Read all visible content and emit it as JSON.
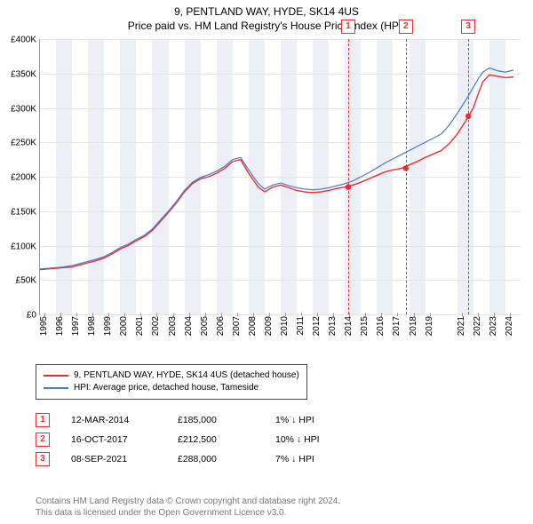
{
  "title_line1": "9, PENTLAND WAY, HYDE, SK14 4US",
  "title_line2": "Price paid vs. HM Land Registry's House Price Index (HPI)",
  "chart": {
    "type": "line",
    "x_range": [
      1995,
      2025
    ],
    "y_range": [
      0,
      400000
    ],
    "y_ticks": [
      0,
      50000,
      100000,
      150000,
      200000,
      250000,
      300000,
      350000,
      400000
    ],
    "y_tick_labels": [
      "£0",
      "£50K",
      "£100K",
      "£150K",
      "£200K",
      "£250K",
      "£300K",
      "£350K",
      "£400K"
    ],
    "x_ticks": [
      1995,
      1996,
      1997,
      1998,
      1999,
      2000,
      2001,
      2002,
      2003,
      2004,
      2005,
      2006,
      2007,
      2008,
      2009,
      2010,
      2011,
      2012,
      2013,
      2014,
      2015,
      2016,
      2017,
      2018,
      2019,
      2021,
      2022,
      2023,
      2024
    ],
    "alt_band_years": [
      [
        1996,
        1997
      ],
      [
        1998,
        1999
      ],
      [
        2000,
        2001
      ],
      [
        2002,
        2003
      ],
      [
        2004,
        2005
      ],
      [
        2006,
        2007
      ],
      [
        2008,
        2009
      ],
      [
        2010,
        2011
      ],
      [
        2012,
        2013
      ],
      [
        2014,
        2015
      ],
      [
        2016,
        2017
      ],
      [
        2018,
        2019
      ],
      [
        2021,
        2022
      ],
      [
        2023,
        2024
      ]
    ],
    "grid_color": "#e4e4e4",
    "band_color": "#eceff5",
    "series": [
      {
        "name": "9, PENTLAND WAY, HYDE, SK14 4US (detached house)",
        "color": "#ef2b2d",
        "width": 1.4,
        "points": [
          [
            1995,
            65000
          ],
          [
            1995.5,
            66000
          ],
          [
            1996,
            67000
          ],
          [
            1996.5,
            68000
          ],
          [
            1997,
            69000
          ],
          [
            1997.5,
            72000
          ],
          [
            1998,
            75000
          ],
          [
            1998.5,
            78000
          ],
          [
            1999,
            82000
          ],
          [
            1999.5,
            88000
          ],
          [
            2000,
            95000
          ],
          [
            2000.5,
            100000
          ],
          [
            2001,
            107000
          ],
          [
            2001.5,
            113000
          ],
          [
            2002,
            122000
          ],
          [
            2002.5,
            135000
          ],
          [
            2003,
            148000
          ],
          [
            2003.5,
            162000
          ],
          [
            2004,
            178000
          ],
          [
            2004.5,
            190000
          ],
          [
            2005,
            197000
          ],
          [
            2005.5,
            200000
          ],
          [
            2006,
            205000
          ],
          [
            2006.5,
            212000
          ],
          [
            2007,
            222000
          ],
          [
            2007.5,
            225000
          ],
          [
            2008,
            205000
          ],
          [
            2008.3,
            195000
          ],
          [
            2008.6,
            185000
          ],
          [
            2009,
            178000
          ],
          [
            2009.5,
            185000
          ],
          [
            2010,
            188000
          ],
          [
            2010.5,
            184000
          ],
          [
            2011,
            180000
          ],
          [
            2011.5,
            178000
          ],
          [
            2012,
            177000
          ],
          [
            2012.5,
            178000
          ],
          [
            2013,
            180000
          ],
          [
            2013.5,
            183000
          ],
          [
            2014,
            185000
          ],
          [
            2014.5,
            188000
          ],
          [
            2015,
            192000
          ],
          [
            2015.5,
            197000
          ],
          [
            2016,
            202000
          ],
          [
            2016.5,
            207000
          ],
          [
            2017,
            210000
          ],
          [
            2017.5,
            212000
          ],
          [
            2018,
            217000
          ],
          [
            2018.5,
            222000
          ],
          [
            2019,
            228000
          ],
          [
            2019.5,
            233000
          ],
          [
            2020,
            238000
          ],
          [
            2020.5,
            248000
          ],
          [
            2021,
            262000
          ],
          [
            2021.5,
            280000
          ],
          [
            2022,
            300000
          ],
          [
            2022.3,
            320000
          ],
          [
            2022.6,
            338000
          ],
          [
            2023,
            348000
          ],
          [
            2023.5,
            346000
          ],
          [
            2024,
            344000
          ],
          [
            2024.5,
            345000
          ]
        ]
      },
      {
        "name": "HPI: Average price, detached house, Tameside",
        "color": "#4a78c4",
        "width": 1.2,
        "points": [
          [
            1995,
            66000
          ],
          [
            1995.5,
            67000
          ],
          [
            1996,
            68000
          ],
          [
            1996.5,
            69000
          ],
          [
            1997,
            71000
          ],
          [
            1997.5,
            74000
          ],
          [
            1998,
            77000
          ],
          [
            1998.5,
            80000
          ],
          [
            1999,
            84000
          ],
          [
            1999.5,
            90000
          ],
          [
            2000,
            97000
          ],
          [
            2000.5,
            102000
          ],
          [
            2001,
            109000
          ],
          [
            2001.5,
            115000
          ],
          [
            2002,
            124000
          ],
          [
            2002.5,
            137000
          ],
          [
            2003,
            150000
          ],
          [
            2003.5,
            164000
          ],
          [
            2004,
            180000
          ],
          [
            2004.5,
            192000
          ],
          [
            2005,
            199000
          ],
          [
            2005.5,
            203000
          ],
          [
            2006,
            208000
          ],
          [
            2006.5,
            215000
          ],
          [
            2007,
            225000
          ],
          [
            2007.5,
            228000
          ],
          [
            2008,
            210000
          ],
          [
            2008.3,
            200000
          ],
          [
            2008.6,
            190000
          ],
          [
            2009,
            182000
          ],
          [
            2009.5,
            188000
          ],
          [
            2010,
            191000
          ],
          [
            2010.5,
            187000
          ],
          [
            2011,
            184000
          ],
          [
            2011.5,
            182000
          ],
          [
            2012,
            181000
          ],
          [
            2012.5,
            182000
          ],
          [
            2013,
            184000
          ],
          [
            2013.5,
            187000
          ],
          [
            2014,
            190000
          ],
          [
            2014.5,
            194000
          ],
          [
            2015,
            200000
          ],
          [
            2015.5,
            206000
          ],
          [
            2016,
            213000
          ],
          [
            2016.5,
            220000
          ],
          [
            2017,
            226000
          ],
          [
            2017.5,
            232000
          ],
          [
            2018,
            238000
          ],
          [
            2018.5,
            244000
          ],
          [
            2019,
            250000
          ],
          [
            2019.5,
            256000
          ],
          [
            2020,
            262000
          ],
          [
            2020.5,
            275000
          ],
          [
            2021,
            292000
          ],
          [
            2021.5,
            310000
          ],
          [
            2022,
            330000
          ],
          [
            2022.3,
            342000
          ],
          [
            2022.6,
            352000
          ],
          [
            2023,
            358000
          ],
          [
            2023.5,
            354000
          ],
          [
            2024,
            352000
          ],
          [
            2024.5,
            355000
          ]
        ]
      }
    ],
    "sale_markers": [
      {
        "n": "1",
        "x": 2014.2,
        "y": 185000
      },
      {
        "n": "2",
        "x": 2017.79,
        "y": 212500
      },
      {
        "n": "3",
        "x": 2021.69,
        "y": 288000
      }
    ]
  },
  "legend": [
    {
      "color": "#ef2b2d",
      "label": "9, PENTLAND WAY, HYDE, SK14 4US (detached house)"
    },
    {
      "color": "#4a78c4",
      "label": "HPI: Average price, detached house, Tameside"
    }
  ],
  "sales": [
    {
      "n": "1",
      "date": "12-MAR-2014",
      "price": "£185,000",
      "diff": "1% ↓ HPI"
    },
    {
      "n": "2",
      "date": "16-OCT-2017",
      "price": "£212,500",
      "diff": "10% ↓ HPI"
    },
    {
      "n": "3",
      "date": "08-SEP-2021",
      "price": "£288,000",
      "diff": "7% ↓ HPI"
    }
  ],
  "footer_line1": "Contains HM Land Registry data © Crown copyright and database right 2024.",
  "footer_line2": "This data is licensed under the Open Government Licence v3.0."
}
